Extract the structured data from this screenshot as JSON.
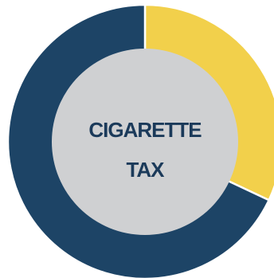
{
  "chart_data": {
    "type": "pie",
    "style": "donut",
    "center_label": {
      "line1": "CIGARETTE",
      "line2": "TAX"
    },
    "slices": [
      {
        "value": 32,
        "color": "#f2d04b"
      },
      {
        "value": 68,
        "color": "#1d4466"
      }
    ],
    "start_angle_deg": 0,
    "direction": "clockwise",
    "hole_color": "#cfd0d2",
    "legend": "none"
  }
}
